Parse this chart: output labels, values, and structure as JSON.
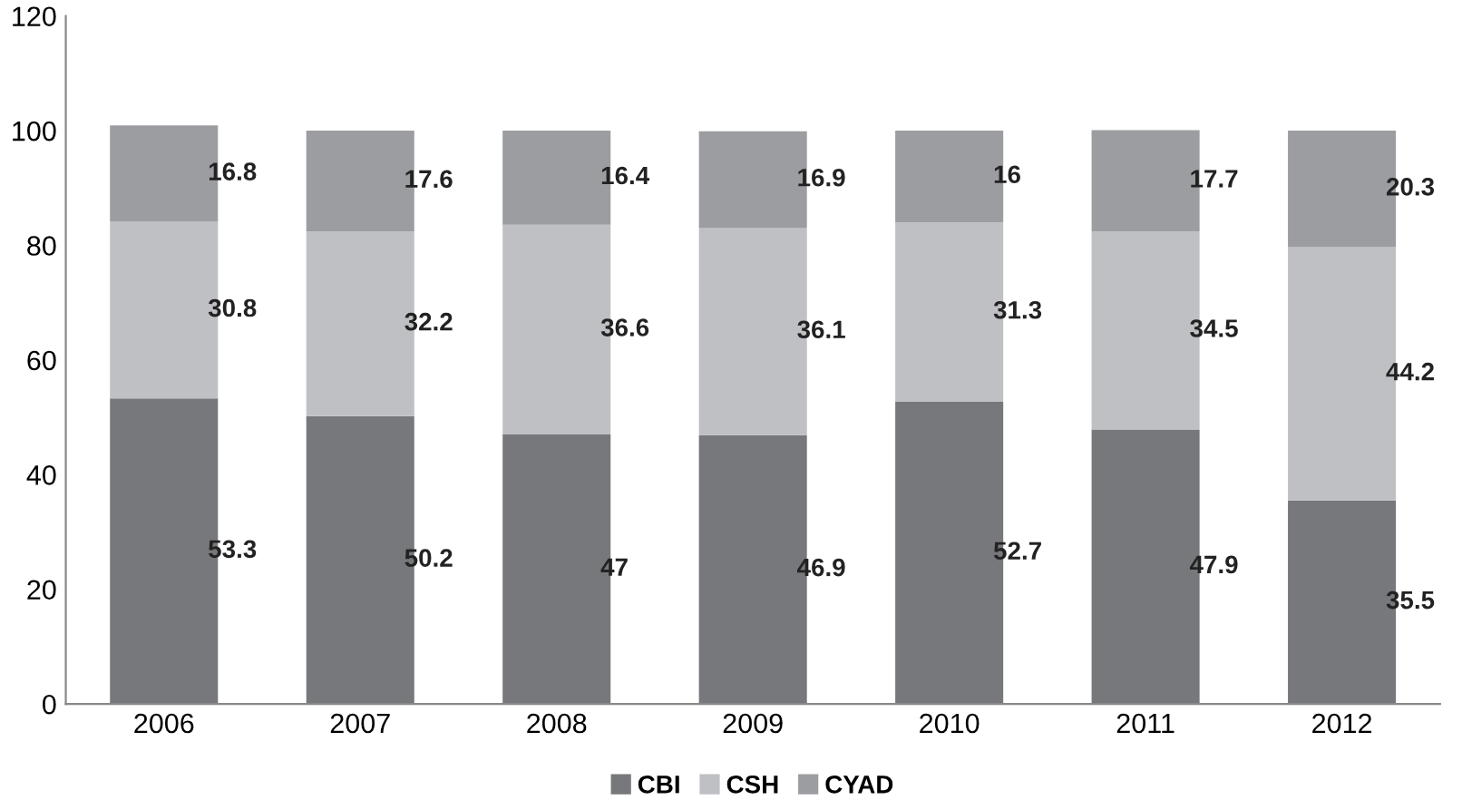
{
  "chart_data": {
    "type": "bar",
    "stacked": true,
    "categories": [
      "2006",
      "2007",
      "2008",
      "2009",
      "2010",
      "2011",
      "2012"
    ],
    "series": [
      {
        "name": "CBI",
        "color": "#77787b",
        "values": [
          53.3,
          50.2,
          47,
          46.9,
          52.7,
          47.9,
          35.5
        ]
      },
      {
        "name": "CSH",
        "color": "#bfc0c4",
        "values": [
          30.8,
          32.2,
          36.6,
          36.1,
          31.3,
          34.5,
          44.2
        ]
      },
      {
        "name": "CYAD",
        "color": "#9c9da0",
        "values": [
          16.8,
          17.6,
          16.4,
          16.9,
          16,
          17.7,
          20.3
        ]
      }
    ],
    "ylim": [
      0,
      120
    ],
    "yticks": [
      0,
      20,
      40,
      60,
      80,
      100,
      120
    ],
    "data_labels": true,
    "grid": false,
    "legend": "bottom"
  }
}
